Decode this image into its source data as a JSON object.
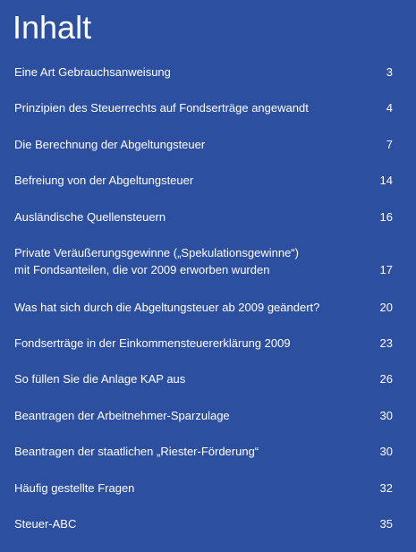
{
  "title": "Inhalt",
  "entries": [
    {
      "label": "Eine Art Gebrauchsanweisung",
      "page": "3"
    },
    {
      "label": "Prinzipien des Steuerrechts auf Fondserträge angewandt",
      "page": "4"
    },
    {
      "label": "Die Berechnung der Abgeltungsteuer",
      "page": "7"
    },
    {
      "label": "Befreiung von der Abgeltungsteuer",
      "page": "14"
    },
    {
      "label": "Ausländische Quellensteuern",
      "page": "16"
    },
    {
      "label_line1": "Private Veräußerungsgewinne („Spekulationsgewinne“)",
      "label_line2": "mit Fondsanteilen, die vor 2009 erworben wurden",
      "page": "17"
    },
    {
      "label": "Was hat sich durch die Abgeltungsteuer ab 2009 geändert?",
      "page": "20"
    },
    {
      "label": "Fondserträge in der Einkommensteuererklärung 2009",
      "page": "23"
    },
    {
      "label": "So füllen Sie die Anlage KAP aus",
      "page": "26"
    },
    {
      "label": "Beantragen der Arbeitnehmer-Sparzulage",
      "page": "30"
    },
    {
      "label": "Beantragen der staatlichen „Riester-Förderung“",
      "page": "30"
    },
    {
      "label": "Häufig gestellte Fragen",
      "page": "32"
    },
    {
      "label": "Steuer-ABC",
      "page": "35"
    }
  ]
}
